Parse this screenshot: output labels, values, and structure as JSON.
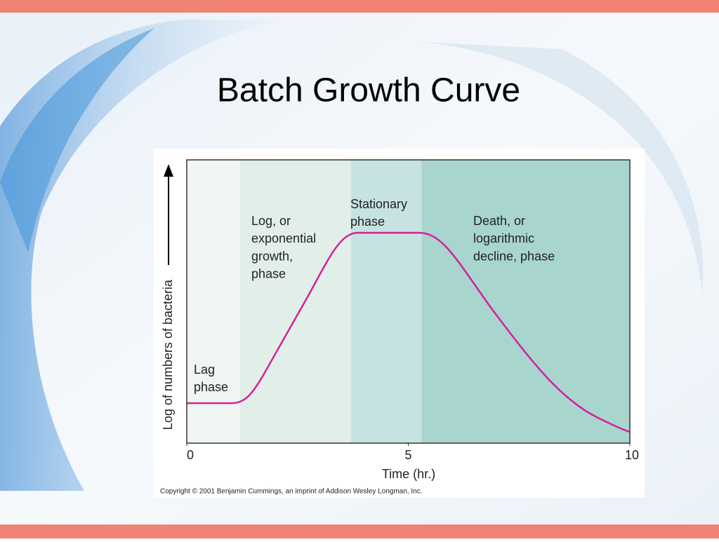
{
  "title": "Batch Growth Curve",
  "chart_data": {
    "type": "phases",
    "x_label": "Time (hr.)",
    "y_label": "Log of numbers of bacteria",
    "xlim": [
      0,
      10
    ],
    "xticks": [
      0,
      5,
      10
    ],
    "phases": [
      {
        "lines": [
          "Lag",
          "phase"
        ],
        "start": 0,
        "end": 1.2,
        "color": "#eef5f2"
      },
      {
        "lines": [
          "Log, or",
          "exponential",
          "growth,",
          "phase"
        ],
        "start": 1.2,
        "end": 3.7,
        "color": "#e2efe9"
      },
      {
        "lines": [
          "Stationary",
          "phase"
        ],
        "start": 3.7,
        "end": 5.3,
        "color": "#c7e3e1"
      },
      {
        "lines": [
          "Death, or",
          "logarithmic",
          "decline, phase"
        ],
        "start": 5.3,
        "end": 10,
        "color": "#a8d6cf"
      }
    ],
    "curve_color": "#d6209a",
    "copyright": "Copyright © 2001 Benjamin Cummings, an imprint of Addison Wesley Longman, Inc."
  }
}
